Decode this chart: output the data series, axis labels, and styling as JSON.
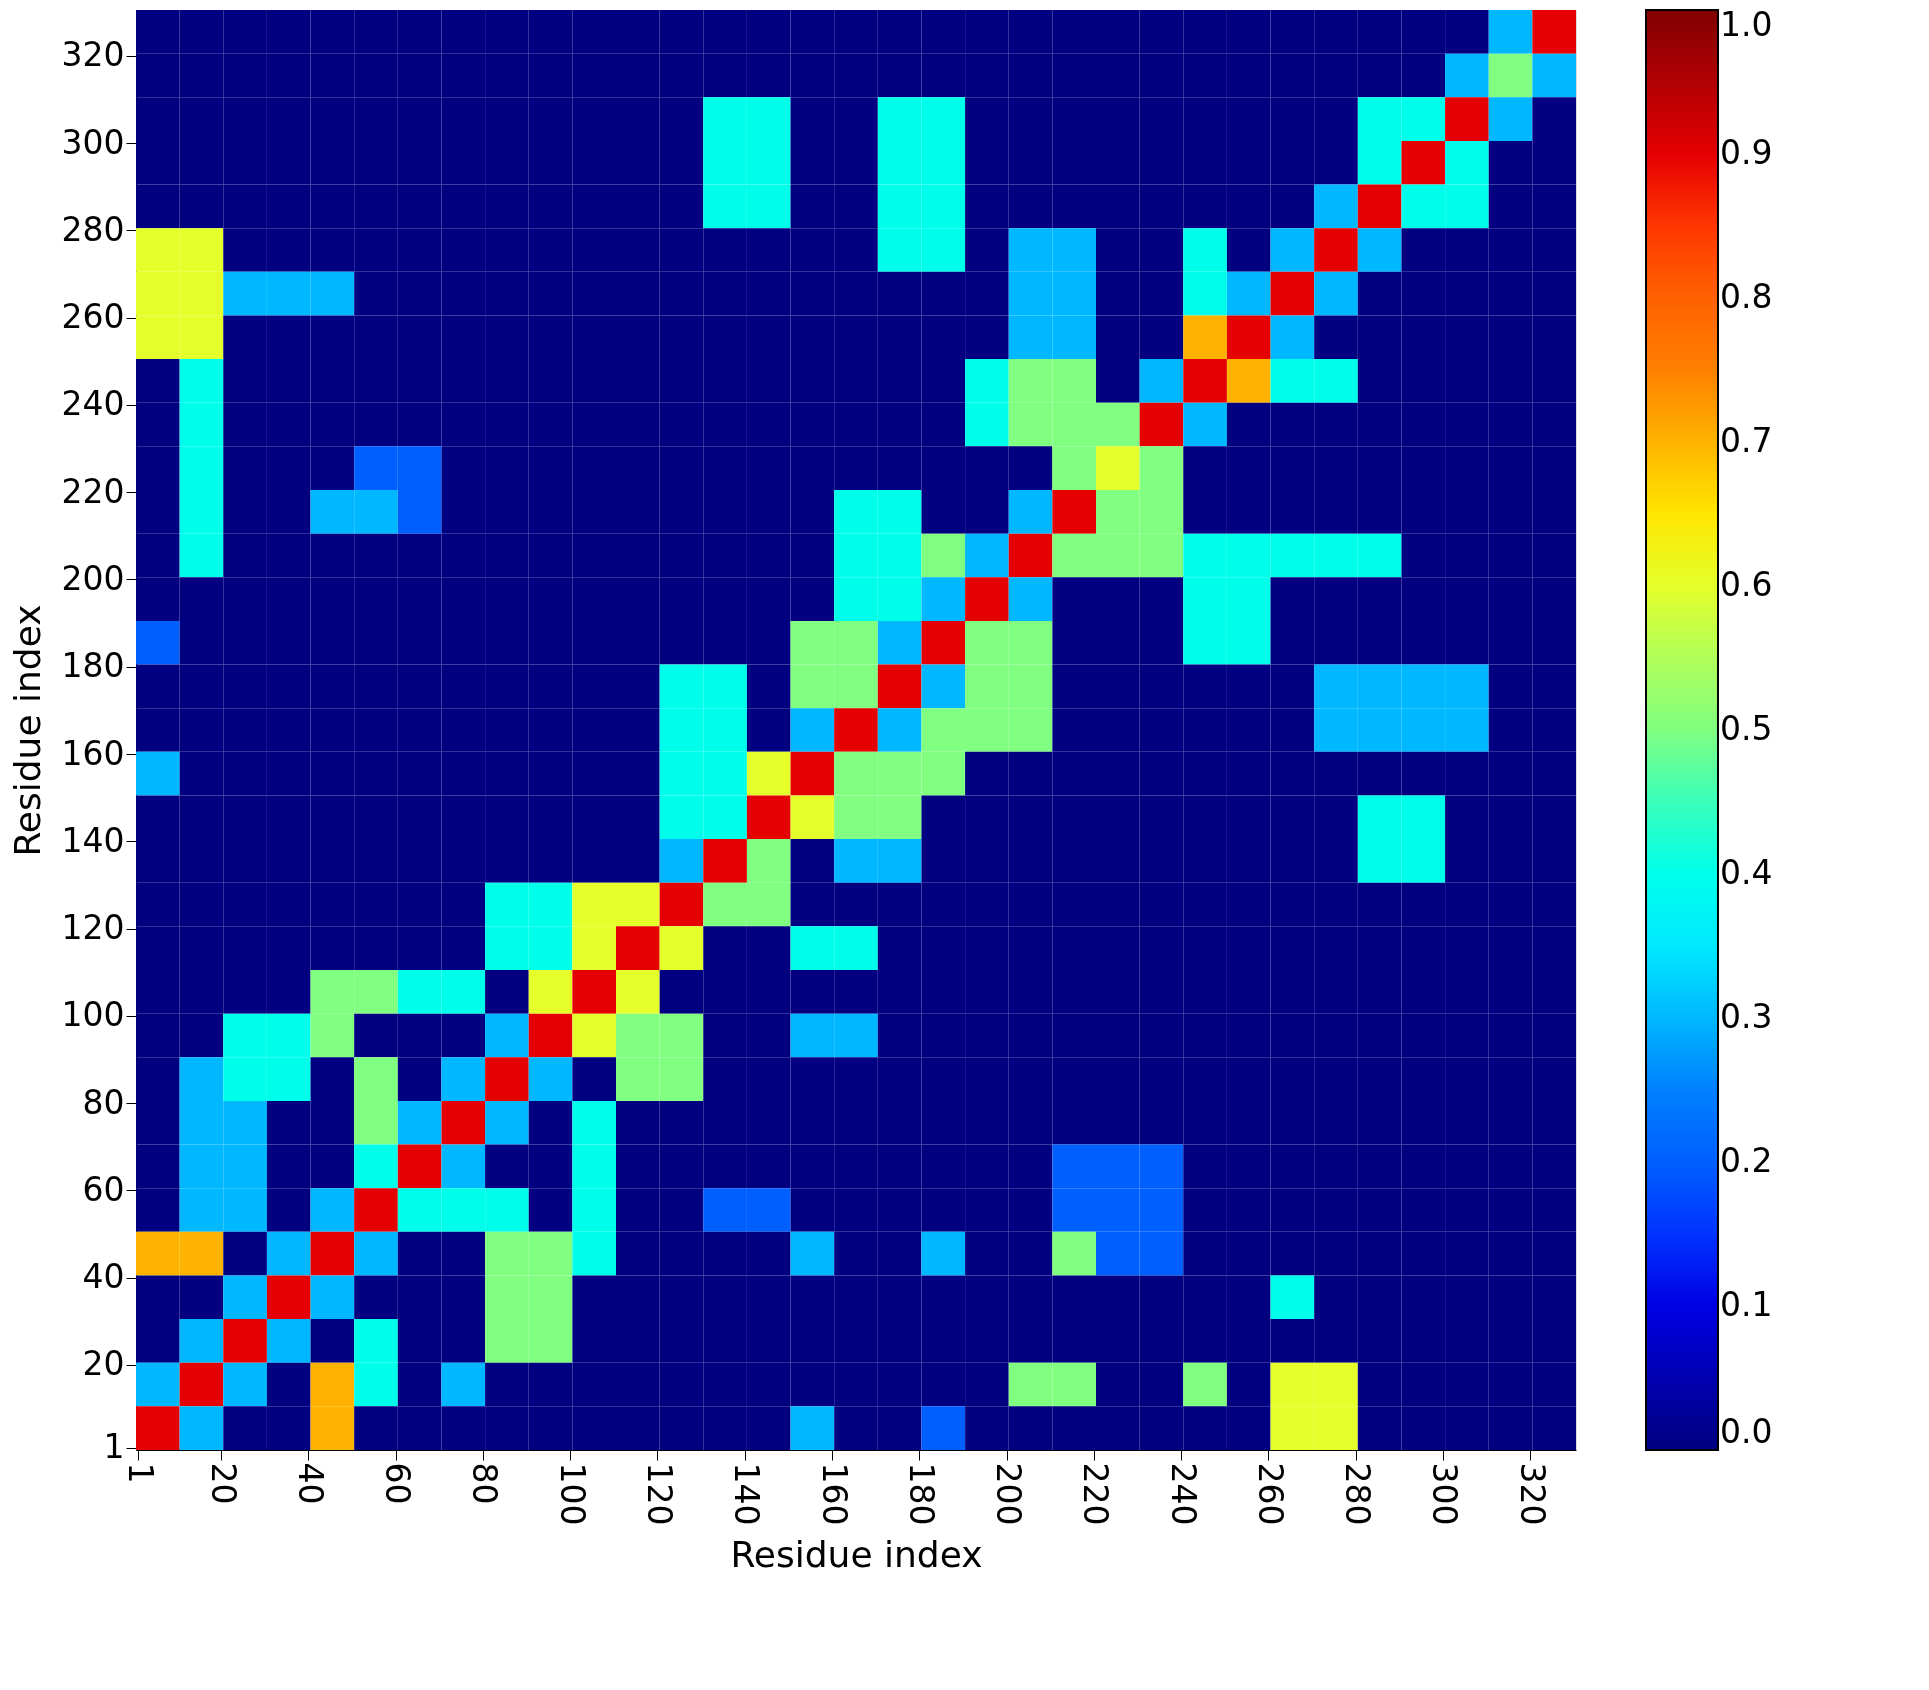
{
  "chart_data": {
    "type": "heatmap",
    "xlabel": "Residue index",
    "ylabel": "Residue index",
    "x": [
      5.5,
      15.5,
      25.5,
      35.5,
      45.5,
      55.5,
      65.5,
      75.5,
      85.5,
      95.5,
      105.5,
      115.5,
      125.5,
      135.5,
      145.5,
      155.5,
      165.5,
      175.5,
      185.5,
      195.5,
      205.5,
      215.5,
      225.5,
      235.5,
      245.5,
      255.5,
      265.5,
      275.5,
      285.5,
      295.5,
      305.5,
      315.5,
      325.5
    ],
    "y": [
      325.5,
      315.5,
      305.5,
      295.5,
      285.5,
      275.5,
      265.5,
      255.5,
      245.5,
      235.5,
      225.5,
      215.5,
      205.5,
      195.5,
      185.5,
      175.5,
      165.5,
      155.5,
      145.5,
      135.5,
      125.5,
      115.5,
      105.5,
      95.5,
      85.5,
      75.5,
      65.5,
      55.5,
      45.5,
      35.5,
      25.5,
      15.5,
      5.5
    ],
    "xlim": [
      0.5,
      330.5
    ],
    "ylim": [
      0.5,
      330.5
    ],
    "xticks": [
      1,
      20,
      40,
      60,
      80,
      100,
      120,
      140,
      160,
      180,
      200,
      220,
      240,
      260,
      280,
      300,
      320
    ],
    "yticks": [
      1,
      20,
      40,
      60,
      80,
      100,
      120,
      140,
      160,
      180,
      200,
      220,
      240,
      260,
      280,
      300,
      320
    ],
    "clim": [
      0,
      1
    ],
    "cticks": [
      {
        "value": 0,
        "label": "0.0"
      },
      {
        "value": 0.1,
        "label": "0.1"
      },
      {
        "value": 0.2,
        "label": "0.2"
      },
      {
        "value": 0.3,
        "label": "0.3"
      },
      {
        "value": 0.4,
        "label": "0.4"
      },
      {
        "value": 0.5,
        "label": "0.5"
      },
      {
        "value": 0.6,
        "label": "0.6"
      },
      {
        "value": 0.7,
        "label": "0.7"
      },
      {
        "value": 0.8,
        "label": "0.8"
      },
      {
        "value": 0.9,
        "label": "0.9"
      },
      {
        "value": 1,
        "label": "1.0"
      }
    ],
    "colors": [
      "#000080",
      "#0000ff",
      "#0080ff",
      "#00ffff",
      "#80ff80",
      "#ffff00",
      "#ff8000",
      "#ff0000",
      "#800000"
    ],
    "grid": false,
    "cells": [
      [
        0,
        0,
        0,
        0,
        0,
        0,
        0,
        0,
        0,
        0,
        0,
        0,
        0,
        0,
        0,
        0,
        0,
        0,
        0,
        0,
        0,
        0,
        0,
        0,
        0,
        0,
        0,
        0,
        0,
        0,
        0,
        0.3,
        0.9
      ],
      [
        0,
        0,
        0,
        0,
        0,
        0,
        0,
        0,
        0,
        0,
        0,
        0,
        0,
        0,
        0,
        0,
        0,
        0,
        0,
        0,
        0,
        0,
        0,
        0,
        0,
        0,
        0,
        0,
        0,
        0,
        0.3,
        0.5,
        0.3
      ],
      [
        0,
        0,
        0,
        0,
        0,
        0,
        0,
        0,
        0,
        0,
        0,
        0,
        0,
        0.4,
        0.4,
        0,
        0,
        0.4,
        0.4,
        0,
        0,
        0,
        0,
        0,
        0,
        0,
        0,
        0,
        0.4,
        0.4,
        0.9,
        0.3,
        0
      ],
      [
        0,
        0,
        0,
        0,
        0,
        0,
        0,
        0,
        0,
        0,
        0,
        0,
        0,
        0.4,
        0.4,
        0,
        0,
        0.4,
        0.4,
        0,
        0,
        0,
        0,
        0,
        0,
        0,
        0,
        0,
        0.4,
        0.9,
        0.4,
        0,
        0
      ],
      [
        0,
        0,
        0,
        0,
        0,
        0,
        0,
        0,
        0,
        0,
        0,
        0,
        0,
        0.4,
        0.4,
        0,
        0,
        0.4,
        0.4,
        0,
        0,
        0,
        0,
        0,
        0,
        0,
        0,
        0.3,
        0.9,
        0.4,
        0.4,
        0,
        0
      ],
      [
        0.6,
        0.6,
        0,
        0,
        0,
        0,
        0,
        0,
        0,
        0,
        0,
        0,
        0,
        0,
        0,
        0,
        0,
        0.4,
        0.4,
        0,
        0.3,
        0.3,
        0,
        0,
        0.4,
        0,
        0.3,
        0.9,
        0.3,
        0,
        0,
        0,
        0
      ],
      [
        0.6,
        0.6,
        0.3,
        0.3,
        0.3,
        0,
        0,
        0,
        0,
        0,
        0,
        0,
        0,
        0,
        0,
        0,
        0,
        0,
        0,
        0,
        0.3,
        0.3,
        0,
        0,
        0.4,
        0.3,
        0.9,
        0.3,
        0,
        0,
        0,
        0,
        0
      ],
      [
        0.6,
        0.6,
        0,
        0,
        0,
        0,
        0,
        0,
        0,
        0,
        0,
        0,
        0,
        0,
        0,
        0,
        0,
        0,
        0,
        0,
        0.3,
        0.3,
        0,
        0,
        0.7,
        0.9,
        0.3,
        0,
        0,
        0,
        0,
        0,
        0
      ],
      [
        0,
        0.4,
        0,
        0,
        0,
        0,
        0,
        0,
        0,
        0,
        0,
        0,
        0,
        0,
        0,
        0,
        0,
        0,
        0,
        0.4,
        0.5,
        0.5,
        0,
        0.3,
        0.9,
        0.7,
        0.4,
        0.4,
        0,
        0,
        0,
        0,
        0
      ],
      [
        0,
        0.4,
        0,
        0,
        0,
        0,
        0,
        0,
        0,
        0,
        0,
        0,
        0,
        0,
        0,
        0,
        0,
        0,
        0,
        0.4,
        0.5,
        0.5,
        0.5,
        0.9,
        0.3,
        0,
        0,
        0,
        0,
        0,
        0,
        0,
        0
      ],
      [
        0,
        0.4,
        0,
        0,
        0,
        0.2,
        0.2,
        0,
        0,
        0,
        0,
        0,
        0,
        0,
        0,
        0,
        0,
        0,
        0,
        0,
        0,
        0.5,
        0.6,
        0.5,
        0,
        0,
        0,
        0,
        0,
        0,
        0,
        0,
        0
      ],
      [
        0,
        0.4,
        0,
        0,
        0.3,
        0.3,
        0.2,
        0,
        0,
        0,
        0,
        0,
        0,
        0,
        0,
        0,
        0.4,
        0.4,
        0,
        0,
        0.3,
        0.9,
        0.5,
        0.5,
        0,
        0,
        0,
        0,
        0,
        0,
        0,
        0,
        0
      ],
      [
        0,
        0.4,
        0,
        0,
        0,
        0,
        0,
        0,
        0,
        0,
        0,
        0,
        0,
        0,
        0,
        0,
        0.4,
        0.4,
        0.5,
        0.3,
        0.9,
        0.5,
        0.5,
        0.5,
        0.4,
        0.4,
        0.4,
        0.4,
        0.4,
        0,
        0,
        0,
        0
      ],
      [
        0,
        0,
        0,
        0,
        0,
        0,
        0,
        0,
        0,
        0,
        0,
        0,
        0,
        0,
        0,
        0,
        0.4,
        0.4,
        0.3,
        0.9,
        0.3,
        0,
        0,
        0,
        0.4,
        0.4,
        0,
        0,
        0,
        0,
        0,
        0,
        0
      ],
      [
        0.2,
        0,
        0,
        0,
        0,
        0,
        0,
        0,
        0,
        0,
        0,
        0,
        0,
        0,
        0,
        0.5,
        0.5,
        0.3,
        0.9,
        0.5,
        0.5,
        0,
        0,
        0,
        0.4,
        0.4,
        0,
        0,
        0,
        0,
        0,
        0,
        0
      ],
      [
        0,
        0,
        0,
        0,
        0,
        0,
        0,
        0,
        0,
        0,
        0,
        0,
        0.4,
        0.4,
        0,
        0.5,
        0.5,
        0.9,
        0.3,
        0.5,
        0.5,
        0,
        0,
        0,
        0,
        0,
        0,
        0.3,
        0.3,
        0.3,
        0.3,
        0,
        0
      ],
      [
        0,
        0,
        0,
        0,
        0,
        0,
        0,
        0,
        0,
        0,
        0,
        0,
        0.4,
        0.4,
        0,
        0.3,
        0.9,
        0.3,
        0.5,
        0.5,
        0.5,
        0,
        0,
        0,
        0,
        0,
        0,
        0.3,
        0.3,
        0.3,
        0.3,
        0,
        0
      ],
      [
        0.3,
        0,
        0,
        0,
        0,
        0,
        0,
        0,
        0,
        0,
        0,
        0,
        0.4,
        0.4,
        0.6,
        0.9,
        0.5,
        0.5,
        0.5,
        0,
        0,
        0,
        0,
        0,
        0,
        0,
        0,
        0,
        0,
        0,
        0,
        0,
        0
      ],
      [
        0,
        0,
        0,
        0,
        0,
        0,
        0,
        0,
        0,
        0,
        0,
        0,
        0.4,
        0.4,
        0.9,
        0.6,
        0.5,
        0.5,
        0,
        0,
        0,
        0,
        0,
        0,
        0,
        0,
        0,
        0,
        0.4,
        0.4,
        0,
        0,
        0
      ],
      [
        0,
        0,
        0,
        0,
        0,
        0,
        0,
        0,
        0,
        0,
        0,
        0,
        0.3,
        0.9,
        0.5,
        0,
        0.3,
        0.3,
        0,
        0,
        0,
        0,
        0,
        0,
        0,
        0,
        0,
        0,
        0.4,
        0.4,
        0,
        0,
        0
      ],
      [
        0,
        0,
        0,
        0,
        0,
        0,
        0,
        0,
        0.4,
        0.4,
        0.6,
        0.6,
        0.9,
        0.5,
        0.5,
        0,
        0,
        0,
        0,
        0,
        0,
        0,
        0,
        0,
        0,
        0,
        0,
        0,
        0,
        0,
        0,
        0,
        0
      ],
      [
        0,
        0,
        0,
        0,
        0,
        0,
        0,
        0,
        0.4,
        0.4,
        0.6,
        0.9,
        0.6,
        0,
        0,
        0.4,
        0.4,
        0,
        0,
        0,
        0,
        0,
        0,
        0,
        0,
        0,
        0,
        0,
        0,
        0,
        0,
        0,
        0
      ],
      [
        0,
        0,
        0,
        0,
        0.5,
        0.5,
        0.4,
        0.4,
        0,
        0.6,
        0.9,
        0.6,
        0,
        0,
        0,
        0,
        0,
        0,
        0,
        0,
        0,
        0,
        0,
        0,
        0,
        0,
        0,
        0,
        0,
        0,
        0,
        0,
        0
      ],
      [
        0,
        0,
        0.4,
        0.4,
        0.5,
        0,
        0,
        0,
        0.3,
        0.9,
        0.6,
        0.5,
        0.5,
        0,
        0,
        0.3,
        0.3,
        0,
        0,
        0,
        0,
        0,
        0,
        0,
        0,
        0,
        0,
        0,
        0,
        0,
        0,
        0,
        0
      ],
      [
        0,
        0.3,
        0.4,
        0.4,
        0,
        0.5,
        0,
        0.3,
        0.9,
        0.3,
        0,
        0.5,
        0.5,
        0,
        0,
        0,
        0,
        0,
        0,
        0,
        0,
        0,
        0,
        0,
        0,
        0,
        0,
        0,
        0,
        0,
        0,
        0,
        0
      ],
      [
        0,
        0.3,
        0.3,
        0,
        0,
        0.5,
        0.3,
        0.9,
        0.3,
        0,
        0.4,
        0,
        0,
        0,
        0,
        0,
        0,
        0,
        0,
        0,
        0,
        0,
        0,
        0,
        0,
        0,
        0,
        0,
        0,
        0,
        0,
        0,
        0
      ],
      [
        0,
        0.3,
        0.3,
        0,
        0,
        0.4,
        0.9,
        0.3,
        0,
        0,
        0.4,
        0,
        0,
        0,
        0,
        0,
        0,
        0,
        0,
        0,
        0,
        0.2,
        0.2,
        0.2,
        0,
        0,
        0,
        0,
        0,
        0,
        0,
        0,
        0
      ],
      [
        0,
        0.3,
        0.3,
        0,
        0.3,
        0.9,
        0.4,
        0.4,
        0.4,
        0,
        0.4,
        0,
        0,
        0.2,
        0.2,
        0,
        0,
        0,
        0,
        0,
        0,
        0.2,
        0.2,
        0.2,
        0,
        0,
        0,
        0,
        0,
        0,
        0,
        0,
        0
      ],
      [
        0.7,
        0.7,
        0,
        0.3,
        0.9,
        0.3,
        0,
        0,
        0.5,
        0.5,
        0.4,
        0,
        0,
        0,
        0,
        0.3,
        0,
        0,
        0.3,
        0,
        0,
        0.5,
        0.2,
        0.2,
        0,
        0,
        0,
        0,
        0,
        0,
        0,
        0,
        0
      ],
      [
        0,
        0,
        0.3,
        0.9,
        0.3,
        0,
        0,
        0,
        0.5,
        0.5,
        0,
        0,
        0,
        0,
        0,
        0,
        0,
        0,
        0,
        0,
        0,
        0,
        0,
        0,
        0,
        0,
        0.4,
        0,
        0,
        0,
        0,
        0,
        0
      ],
      [
        0,
        0.3,
        0.9,
        0.3,
        0,
        0.4,
        0,
        0,
        0.5,
        0.5,
        0,
        0,
        0,
        0,
        0,
        0,
        0,
        0,
        0,
        0,
        0,
        0,
        0,
        0,
        0,
        0,
        0,
        0,
        0,
        0,
        0,
        0,
        0
      ],
      [
        0.3,
        0.9,
        0.3,
        0,
        0.7,
        0.4,
        0,
        0.3,
        0,
        0,
        0,
        0,
        0,
        0,
        0,
        0,
        0,
        0,
        0,
        0,
        0.5,
        0.5,
        0,
        0,
        0.5,
        0,
        0.6,
        0.6,
        0,
        0,
        0,
        0,
        0
      ],
      [
        0.9,
        0.3,
        0,
        0,
        0.7,
        0,
        0,
        0,
        0,
        0,
        0,
        0,
        0,
        0,
        0,
        0.3,
        0,
        0,
        0.2,
        0,
        0,
        0,
        0,
        0,
        0,
        0,
        0.6,
        0.6,
        0,
        0,
        0,
        0,
        0
      ]
    ]
  }
}
